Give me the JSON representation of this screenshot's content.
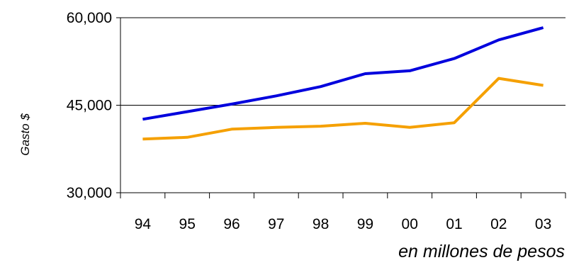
{
  "chart_data": {
    "type": "line",
    "title": "",
    "ylabel": "Gasto $",
    "xlabel": "en millones de pesos",
    "categories": [
      "94",
      "95",
      "96",
      "97",
      "98",
      "99",
      "00",
      "01",
      "02",
      "03"
    ],
    "ylim": [
      30000,
      60000
    ],
    "yticks": [
      30000,
      45000,
      60000
    ],
    "ytick_labels": [
      "30,000",
      "45,000",
      "60,000"
    ],
    "grid": true,
    "series": [
      {
        "color": "#0000dd",
        "values": [
          42600,
          43900,
          45200,
          46600,
          48200,
          50400,
          50900,
          53000,
          56200,
          58300
        ]
      },
      {
        "color": "#f5a000",
        "values": [
          39200,
          39500,
          40900,
          41200,
          41400,
          41900,
          41200,
          42000,
          49600,
          48400
        ]
      }
    ]
  }
}
